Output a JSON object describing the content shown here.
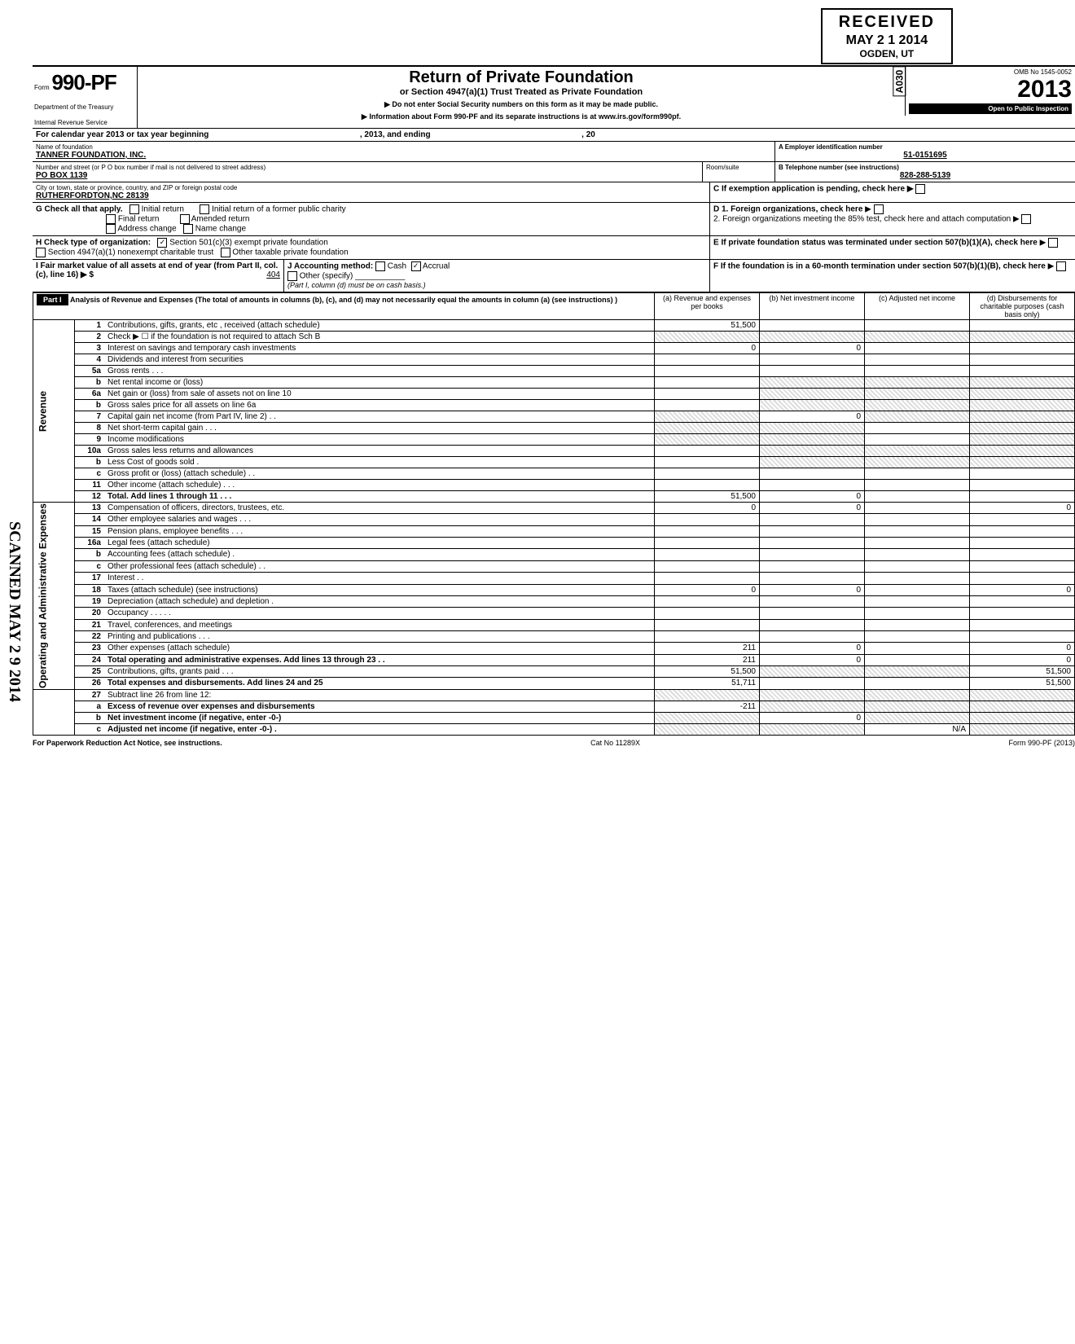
{
  "stamp": {
    "received": "RECEIVED",
    "date": "MAY 2 1 2014",
    "location": "OGDEN, UT",
    "code": "A030"
  },
  "form": {
    "label": "Form",
    "number": "990-PF",
    "dept1": "Department of the Treasury",
    "dept2": "Internal Revenue Service",
    "title": "Return of Private Foundation",
    "subtitle": "or Section 4947(a)(1) Trust Treated as Private Foundation",
    "note1": "▶ Do not enter Social Security numbers on this form as it may be made public.",
    "note2": "▶ Information about Form 990-PF and its separate instructions is at www.irs.gov/form990pf.",
    "omb": "OMB No 1545-0052",
    "year": "2013",
    "open": "Open to Public Inspection"
  },
  "calyr": {
    "prefix": "For calendar year 2013 or tax year beginning",
    "mid": ", 2013, and ending",
    "suffix": ", 20"
  },
  "foundation": {
    "name_label": "Name of foundation",
    "name": "TANNER FOUNDATION, INC.",
    "addr_label": "Number and street (or P O box number if mail is not delivered to street address)",
    "addr": "PO BOX 1139",
    "room_label": "Room/suite",
    "city_label": "City or town, state or province, country, and ZIP or foreign postal code",
    "city": "RUTHERFORDTON,NC 28139",
    "ein_label": "A  Employer identification number",
    "ein": "51-0151695",
    "tel_label": "B  Telephone number (see instructions)",
    "tel": "828-288-5139",
    "c_label": "C  If exemption application is pending, check here ▶"
  },
  "g": {
    "label": "G  Check all that apply.",
    "opts": [
      "Initial return",
      "Initial return of a former public charity",
      "Final return",
      "Amended return",
      "Address change",
      "Name change"
    ]
  },
  "h": {
    "label": "H  Check type of organization:",
    "o1": "Section 501(c)(3) exempt private foundation",
    "o2": "Section 4947(a)(1) nonexempt charitable trust",
    "o3": "Other taxable private foundation"
  },
  "i": {
    "label": "I  Fair market value of all assets at end of year (from Part II, col. (c), line 16) ▶ $",
    "val": "404"
  },
  "j": {
    "label": "J  Accounting method:",
    "cash": "Cash",
    "accrual": "Accrual",
    "other": "Other (specify)",
    "note": "(Part I, column (d) must be on cash basis.)"
  },
  "d": {
    "d1": "D  1. Foreign organizations, check here",
    "d2": "2. Foreign organizations meeting the 85% test, check here and attach computation"
  },
  "e": "E  If private foundation status was terminated under section 507(b)(1)(A), check here",
  "f": "F  If the foundation is in a 60-month termination under section 507(b)(1)(B), check here",
  "part1": {
    "hdr": "Part I",
    "title": "Analysis of Revenue and Expenses (The total of amounts in columns (b), (c), and (d) may not necessarily equal the amounts in column (a) (see instructions) )",
    "cols": {
      "a": "(a) Revenue and expenses per books",
      "b": "(b) Net investment income",
      "c": "(c) Adjusted net income",
      "d": "(d) Disbursements for charitable purposes (cash basis only)"
    }
  },
  "sections": {
    "revenue": "Revenue",
    "opex": "Operating and Administrative Expenses"
  },
  "rows": [
    {
      "n": "1",
      "d": "Contributions, gifts, grants, etc , received (attach schedule)",
      "a": "51,500",
      "shade_bcd": false
    },
    {
      "n": "2",
      "d": "Check ▶ ☐ if the foundation is not required to attach Sch B",
      "shade_all": true
    },
    {
      "n": "3",
      "d": "Interest on savings and temporary cash investments",
      "a": "0",
      "b": "0"
    },
    {
      "n": "4",
      "d": "Dividends and interest from securities"
    },
    {
      "n": "5a",
      "d": "Gross rents . . ."
    },
    {
      "n": "b",
      "d": "Net rental income or (loss)",
      "shade_bcd": true
    },
    {
      "n": "6a",
      "d": "Net gain or (loss) from sale of assets not on line 10",
      "shade_bcd": true
    },
    {
      "n": "b",
      "d": "Gross sales price for all assets on line 6a",
      "shade_bcd": true
    },
    {
      "n": "7",
      "d": "Capital gain net income (from Part IV, line 2) . .",
      "b": "0",
      "shade_a": true,
      "shade_cd": true
    },
    {
      "n": "8",
      "d": "Net short-term capital gain . . .",
      "shade_ab": true,
      "shade_d": true
    },
    {
      "n": "9",
      "d": "Income modifications",
      "shade_ab": true,
      "shade_d": true
    },
    {
      "n": "10a",
      "d": "Gross sales less returns and allowances",
      "shade_bcd": true
    },
    {
      "n": "b",
      "d": "Less Cost of goods sold .",
      "shade_bcd": true
    },
    {
      "n": "c",
      "d": "Gross profit or (loss) (attach schedule) . ."
    },
    {
      "n": "11",
      "d": "Other income (attach schedule) . . ."
    },
    {
      "n": "12",
      "d": "Total. Add lines 1 through 11 . . .",
      "a": "51,500",
      "b": "0",
      "bold": true
    }
  ],
  "rows_ex": [
    {
      "n": "13",
      "d": "Compensation of officers, directors, trustees, etc.",
      "a": "0",
      "b": "0",
      "dd": "0"
    },
    {
      "n": "14",
      "d": "Other employee salaries and wages . . ."
    },
    {
      "n": "15",
      "d": "Pension plans, employee benefits . . ."
    },
    {
      "n": "16a",
      "d": "Legal fees (attach schedule)"
    },
    {
      "n": "b",
      "d": "Accounting fees (attach schedule) ."
    },
    {
      "n": "c",
      "d": "Other professional fees (attach schedule) . ."
    },
    {
      "n": "17",
      "d": "Interest . ."
    },
    {
      "n": "18",
      "d": "Taxes (attach schedule) (see instructions)",
      "a": "0",
      "b": "0",
      "dd": "0"
    },
    {
      "n": "19",
      "d": "Depreciation (attach schedule) and depletion ."
    },
    {
      "n": "20",
      "d": "Occupancy . . . . ."
    },
    {
      "n": "21",
      "d": "Travel, conferences, and meetings"
    },
    {
      "n": "22",
      "d": "Printing and publications . . ."
    },
    {
      "n": "23",
      "d": "Other expenses (attach schedule)",
      "a": "211",
      "b": "0",
      "dd": "0"
    },
    {
      "n": "24",
      "d": "Total operating and administrative expenses. Add lines 13 through 23 . .",
      "a": "211",
      "b": "0",
      "dd": "0",
      "bold": true
    },
    {
      "n": "25",
      "d": "Contributions, gifts, grants paid . . .",
      "a": "51,500",
      "dd": "51,500",
      "shade_bc": true
    },
    {
      "n": "26",
      "d": "Total expenses and disbursements. Add lines 24 and 25",
      "a": "51,711",
      "dd": "51,500",
      "bold": true
    }
  ],
  "rows_net": [
    {
      "n": "27",
      "d": "Subtract line 26 from line 12:",
      "shade_all": true
    },
    {
      "n": "a",
      "d": "Excess of revenue over expenses and disbursements",
      "a": "-211",
      "bold": true,
      "shade_bcd": true
    },
    {
      "n": "b",
      "d": "Net investment income (if negative, enter -0-)",
      "b": "0",
      "bold": true,
      "shade_a": true,
      "shade_cd": true
    },
    {
      "n": "c",
      "d": "Adjusted net income (if negative, enter -0-) .",
      "c": "N/A",
      "bold": true,
      "shade_ab": true,
      "shade_d": true
    }
  ],
  "footer": {
    "left": "For Paperwork Reduction Act Notice, see instructions.",
    "mid": "Cat No 11289X",
    "right": "Form 990-PF (2013)"
  },
  "colors": {
    "text": "#000000",
    "bg": "#ffffff",
    "shade": "#e0e0e0"
  }
}
